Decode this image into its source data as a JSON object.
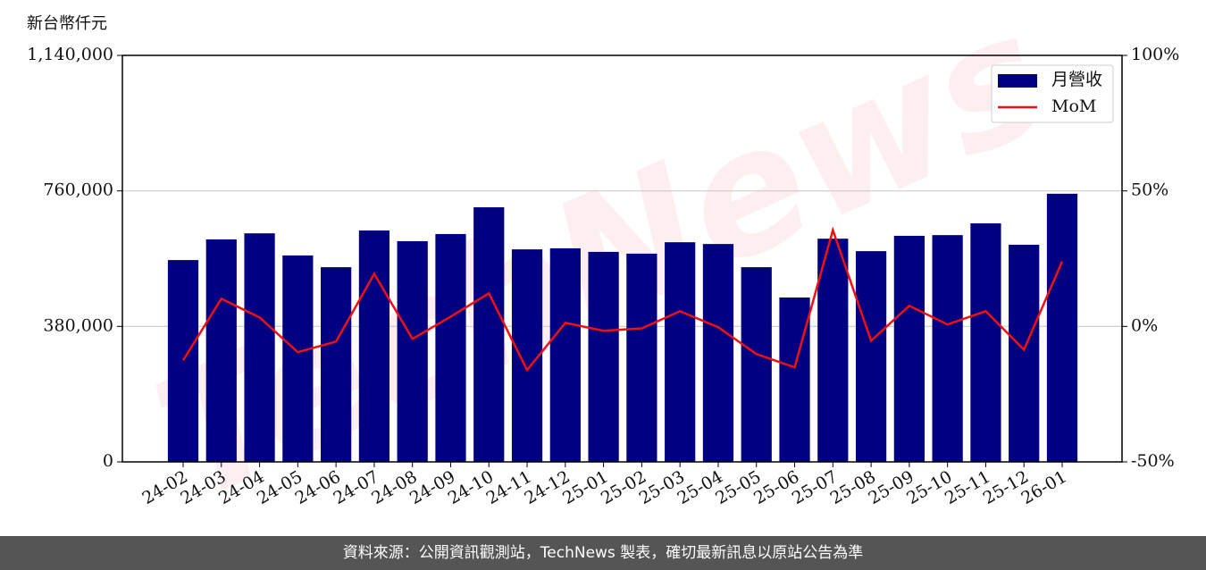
{
  "chart_data": {
    "type": "bar_line",
    "y_label": "新台幣仟元",
    "watermark": "TechNews",
    "footer": "資料來源：公開資訊觀測站，TechNews 製表，確切最新訊息以原站公告為準",
    "categories": [
      "24-02",
      "24-03",
      "24-04",
      "24-05",
      "24-06",
      "24-07",
      "24-08",
      "24-09",
      "24-10",
      "24-11",
      "24-12",
      "25-01",
      "25-02",
      "25-03",
      "25-04",
      "25-05",
      "25-06",
      "25-07",
      "25-08",
      "25-09",
      "25-10",
      "25-11",
      "25-12",
      "26-01"
    ],
    "series": [
      {
        "name": "月營收",
        "type": "bar",
        "color": "#000080",
        "values": [
          566000,
          624000,
          641000,
          579000,
          546000,
          649000,
          619000,
          639000,
          714000,
          596000,
          599000,
          589000,
          584000,
          616000,
          611000,
          546000,
          461000,
          626000,
          591000,
          634000,
          636000,
          669000,
          609000,
          752000
        ]
      },
      {
        "name": "MoM",
        "type": "line",
        "axis": "y2",
        "color": "#ee1111",
        "values": [
          -12.5,
          10.2,
          3.3,
          -9.5,
          -5.6,
          19.4,
          -4.6,
          3.6,
          12.2,
          -16.1,
          1.3,
          -1.6,
          -0.7,
          5.6,
          -0.3,
          -10.2,
          -15.1,
          35.5,
          -5.3,
          7.6,
          0.7,
          5.6,
          -8.6,
          24.0
        ]
      }
    ],
    "ylim": [
      0,
      1140000
    ],
    "yticks": [
      {
        "value": 0,
        "label": "0"
      },
      {
        "value": 380000,
        "label": "380,000"
      },
      {
        "value": 760000,
        "label": "760,000"
      },
      {
        "value": 1140000,
        "label": "1,140,000"
      }
    ],
    "y2lim": [
      -50,
      100
    ],
    "y2ticks": [
      {
        "value": -50,
        "label": "-50%"
      },
      {
        "value": 0,
        "label": "0%"
      },
      {
        "value": 50,
        "label": "50%"
      },
      {
        "value": 100,
        "label": "100%"
      }
    ],
    "grid": true,
    "legend": "upper right"
  }
}
